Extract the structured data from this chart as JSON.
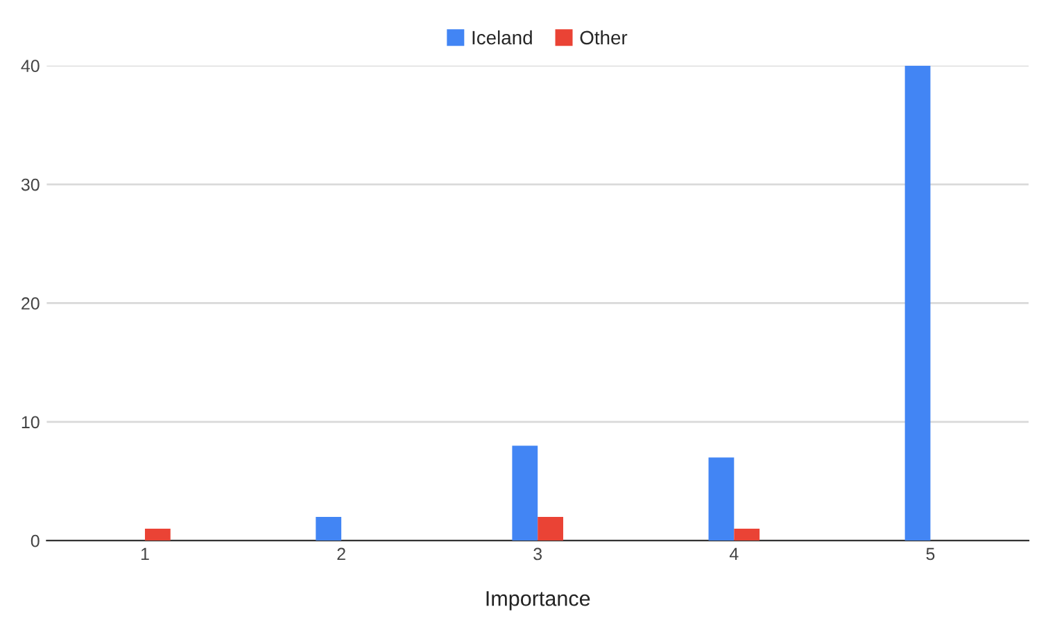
{
  "chart_data": {
    "type": "bar",
    "xlabel": "Importance",
    "categories": [
      "1",
      "2",
      "3",
      "4",
      "5"
    ],
    "series": [
      {
        "name": "Iceland",
        "color": "#4285f4",
        "values": [
          0,
          2,
          8,
          7,
          40
        ]
      },
      {
        "name": "Other",
        "color": "#ea4335",
        "values": [
          1,
          0,
          2,
          1,
          0
        ]
      }
    ],
    "ylim": [
      0,
      40
    ],
    "yticks": [
      0,
      10,
      20,
      30,
      40
    ],
    "grid": "y",
    "legend": "top"
  }
}
